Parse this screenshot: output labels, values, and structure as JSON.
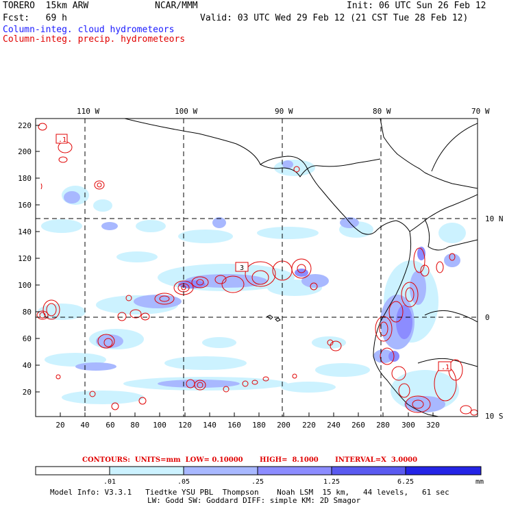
{
  "header": {
    "model_name": "TORERO  15km ARW",
    "org": "NCAR/MMM",
    "init": "Init: 06 UTC Sun 26 Feb 12",
    "fcst": "Fcst:   69 h",
    "valid": "Valid: 03 UTC Wed 29 Feb 12 (21 CST Tue 28 Feb 12)",
    "field1": "Column-integ. cloud hydrometeors",
    "field2": "Column-integ. precip. hydrometeors",
    "field1_color": "#1a1aff",
    "field2_color": "#e00000"
  },
  "map": {
    "top_lon_labels": [
      "110 W",
      "100 W",
      "90 W",
      "80 W",
      "70 W"
    ],
    "right_lat_labels": [
      "10 N",
      "0",
      "10 S"
    ],
    "y_ticks": [
      "20",
      "40",
      "60",
      "80",
      "100",
      "120",
      "140",
      "160",
      "180",
      "200",
      "220"
    ],
    "x_ticks": [
      "20",
      "40",
      "60",
      "80",
      "100",
      "120",
      "140",
      "160",
      "180",
      "200",
      "220",
      "240",
      "260",
      "280",
      "300",
      "320"
    ],
    "annotations": [
      ".1",
      "3",
      ".1"
    ]
  },
  "contour_info": "CONTOURS:  UNITS=mm  LOW= 0.10000       HIGH=  8.1000       INTERVAL=X  3.0000",
  "colorbar": {
    "labels": [
      ".01",
      ".05",
      ".25",
      "1.25",
      "6.25"
    ],
    "unit": "mm",
    "colors": [
      "#ffffff",
      "#ccf2ff",
      "#a8b8ff",
      "#8c8cff",
      "#5a5af0",
      "#2424e6"
    ]
  },
  "model_info": {
    "line1": "Model Info: V3.3.1   Tiedtke YSU PBL  Thompson    Noah LSM  15 km,   44 levels,   61 sec",
    "line2": "LW: Godd SW: Goddard DIFF: simple KM: 2D Smagor"
  }
}
